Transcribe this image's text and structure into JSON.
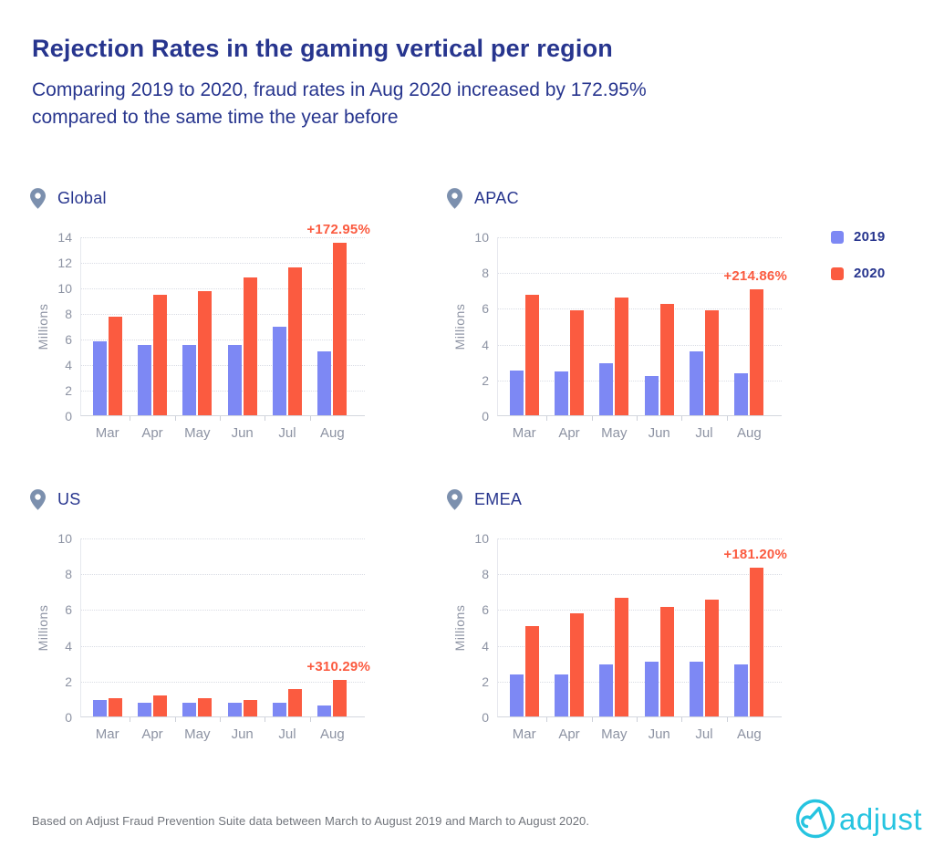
{
  "page": {
    "title": "Rejection Rates in the gaming vertical per region",
    "subtitle_lines": [
      "Comparing 2019 to 2020, fraud rates in Aug 2020 increased by 172.95%",
      "compared to the same time the year before"
    ],
    "footer": "Based on Adjust Fraud Prevention Suite data between March to August 2019 and March to August 2020.",
    "logo_text": "adjust"
  },
  "legend": {
    "items": [
      {
        "label": "2019",
        "color": "#7d88f4"
      },
      {
        "label": "2020",
        "color": "#fb5b40"
      }
    ]
  },
  "colors": {
    "title_navy": "#27358e",
    "axis_text_gray": "#8d93a3",
    "bar_2019": "#7d88f4",
    "bar_2020": "#fb5b40",
    "annotation_orange": "#fb5b40",
    "pin_gray_blue": "#7c90ae",
    "logo_cyan": "#26c4e0",
    "gridline": "#d9dce4"
  },
  "chart_data": [
    {
      "type": "bar",
      "region": "Global",
      "categories": [
        "Mar",
        "Apr",
        "May",
        "Jun",
        "Jul",
        "Aug"
      ],
      "series": [
        {
          "name": "2019",
          "color": "#7d88f4",
          "values": [
            5.8,
            5.5,
            5.5,
            5.5,
            6.9,
            5.0
          ]
        },
        {
          "name": "2020",
          "color": "#fb5b40",
          "values": [
            7.7,
            9.4,
            9.7,
            10.8,
            11.6,
            13.5
          ]
        }
      ],
      "ylabel": "Millions",
      "ylim": [
        0,
        14
      ],
      "yticks": [
        0,
        2,
        4,
        6,
        8,
        10,
        12,
        14
      ],
      "grid": "dotted-horizontal",
      "annotation": {
        "text": "+172.95%",
        "series": "2020",
        "category": "Aug"
      }
    },
    {
      "type": "bar",
      "region": "APAC",
      "categories": [
        "Mar",
        "Apr",
        "May",
        "Jun",
        "Jul",
        "Aug"
      ],
      "series": [
        {
          "name": "2019",
          "color": "#7d88f4",
          "values": [
            2.5,
            2.45,
            2.9,
            2.2,
            3.55,
            2.35
          ]
        },
        {
          "name": "2020",
          "color": "#fb5b40",
          "values": [
            6.75,
            5.85,
            6.6,
            6.25,
            5.85,
            7.05
          ]
        }
      ],
      "ylabel": "Millions",
      "ylim": [
        0,
        10
      ],
      "yticks": [
        0,
        2,
        4,
        6,
        8,
        10
      ],
      "grid": "dotted-horizontal",
      "annotation": {
        "text": "+214.86%",
        "series": "2020",
        "category": "Aug"
      }
    },
    {
      "type": "bar",
      "region": "US",
      "categories": [
        "Mar",
        "Apr",
        "May",
        "Jun",
        "Jul",
        "Aug"
      ],
      "series": [
        {
          "name": "2019",
          "color": "#7d88f4",
          "values": [
            0.9,
            0.75,
            0.75,
            0.75,
            0.75,
            0.6
          ]
        },
        {
          "name": "2020",
          "color": "#fb5b40",
          "values": [
            1.0,
            1.15,
            1.0,
            0.9,
            1.55,
            2.05
          ]
        }
      ],
      "ylabel": "Millions",
      "ylim": [
        0,
        10
      ],
      "yticks": [
        0,
        2,
        4,
        6,
        8,
        10
      ],
      "grid": "dotted-horizontal",
      "annotation": {
        "text": "+310.29%",
        "series": "2020",
        "category": "Aug"
      }
    },
    {
      "type": "bar",
      "region": "EMEA",
      "categories": [
        "Mar",
        "Apr",
        "May",
        "Jun",
        "Jul",
        "Aug"
      ],
      "series": [
        {
          "name": "2019",
          "color": "#7d88f4",
          "values": [
            2.35,
            2.35,
            2.9,
            3.05,
            3.05,
            2.9
          ]
        },
        {
          "name": "2020",
          "color": "#fb5b40",
          "values": [
            5.05,
            5.75,
            6.65,
            6.1,
            6.55,
            8.3
          ]
        }
      ],
      "ylabel": "Millions",
      "ylim": [
        0,
        10
      ],
      "yticks": [
        0,
        2,
        4,
        6,
        8,
        10
      ],
      "grid": "dotted-horizontal",
      "annotation": {
        "text": "+181.20%",
        "series": "2020",
        "category": "Aug"
      }
    }
  ]
}
